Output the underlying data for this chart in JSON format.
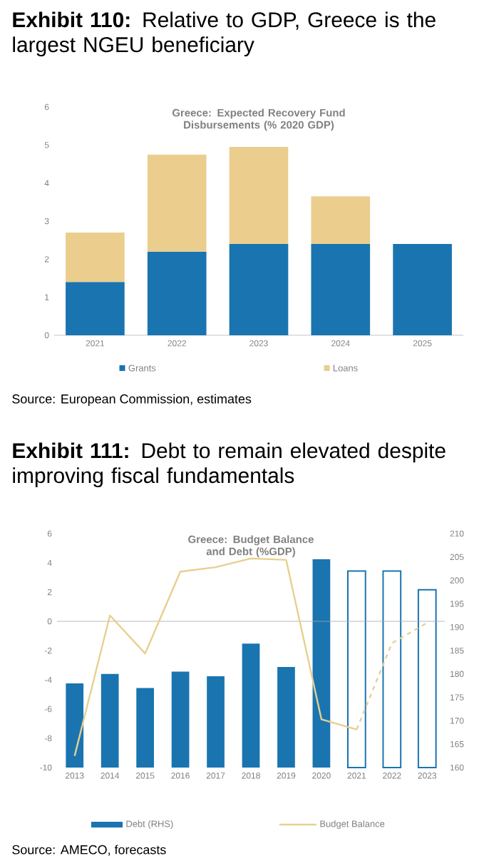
{
  "chart_data": [
    {
      "type": "bar",
      "title": "**Exhibit 110:** Relative to GDP, Greece is the largest NGEU beneficiary",
      "subtitle": "Greece: Expected Recovery Fund Disbursements (% 2020 GDP)",
      "categories": [
        "2021",
        "2022",
        "2023",
        "2024",
        "2025"
      ],
      "stacked": true,
      "series": [
        {
          "name": "Grants",
          "color": "#1a74b0",
          "values": [
            1.4,
            2.2,
            2.4,
            2.4,
            2.4
          ]
        },
        {
          "name": "Loans",
          "color": "#ebcd8e",
          "values": [
            1.3,
            2.55,
            2.55,
            1.25,
            null
          ]
        }
      ],
      "ylim": [
        0,
        6
      ],
      "yticks": [
        0,
        1,
        2,
        3,
        4,
        5,
        6
      ],
      "legend": "bottom",
      "annotations": [
        "Source: European Commission, estimates"
      ]
    },
    {
      "type": "bar",
      "title": "**Exhibit 111:** Debt to remain elevated despite improving fiscal fundamentals",
      "subtitle": "Greece: Budget Balance and Debt (%GDP)",
      "categories": [
        "2013",
        "2014",
        "2015",
        "2016",
        "2017",
        "2018",
        "2019",
        "2020",
        "2021",
        "2022",
        "2023"
      ],
      "series": [
        {
          "name": "Debt (RHS)",
          "type": "bar",
          "axis": "y2",
          "color": "#1a74b0",
          "values": [
            178,
            180,
            177,
            180.5,
            179.5,
            186.5,
            181.5,
            204.5,
            null,
            null,
            null
          ]
        },
        {
          "type": "bar",
          "axis": "y2",
          "color": "#1a74b0",
          "line_style": "solid",
          "values": [
            null,
            null,
            null,
            null,
            null,
            null,
            null,
            null,
            202,
            202,
            198
          ]
        },
        {
          "name": "Budget Balance",
          "type": "line",
          "color": "#e6d08f",
          "values": [
            -9.2,
            0.4,
            -2.2,
            3.4,
            3.7,
            4.3,
            4.2,
            -6.7,
            -7.4,
            null,
            null
          ]
        },
        {
          "type": "line",
          "color": "#e6d08f",
          "line_style": "dashed",
          "values": [
            null,
            null,
            null,
            null,
            null,
            null,
            null,
            null,
            -7.4,
            -1.5,
            -0.1
          ]
        }
      ],
      "ylim": [
        -10,
        6
      ],
      "yticks": [
        -10,
        -8,
        -6,
        -4,
        -2,
        0,
        2,
        4,
        6
      ],
      "y2lim": [
        160,
        210
      ],
      "y2ticks": [
        160,
        165,
        170,
        175,
        180,
        185,
        190,
        195,
        200,
        205,
        210
      ],
      "legend": "bottom",
      "annotations": [
        "Source: AMECO, forecasts"
      ]
    }
  ]
}
